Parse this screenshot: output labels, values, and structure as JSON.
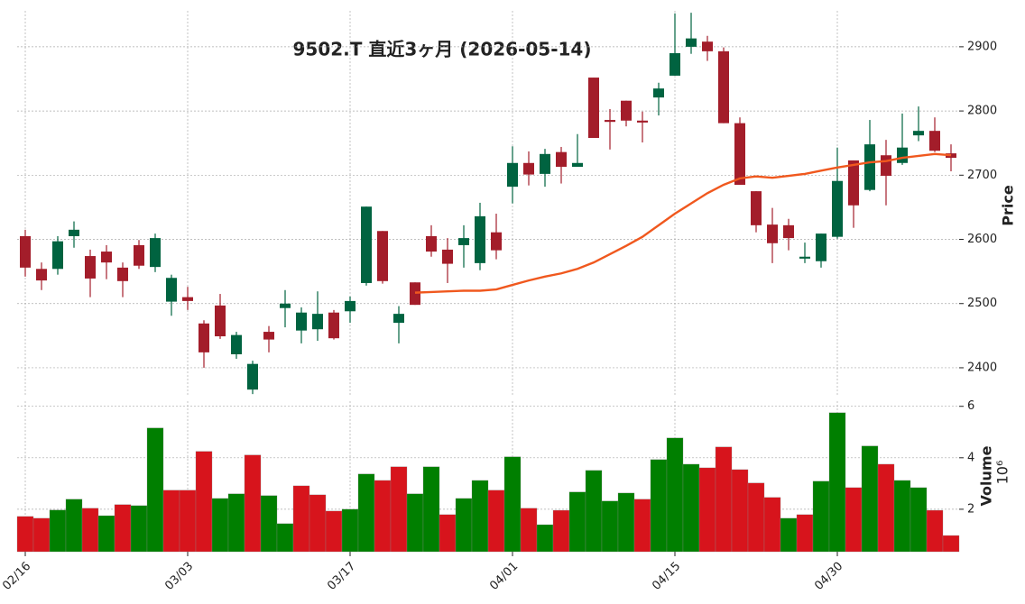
{
  "chart_data": {
    "type": "candlestick",
    "title": "9502.T  直近3ヶ月  (2026-05-14)",
    "categories": [
      "02/16",
      null,
      null,
      null,
      null,
      null,
      null,
      null,
      null,
      null,
      "03/03",
      null,
      null,
      null,
      null,
      null,
      null,
      null,
      null,
      null,
      "03/17",
      null,
      null,
      null,
      null,
      null,
      null,
      null,
      null,
      null,
      "04/01",
      null,
      null,
      null,
      null,
      null,
      null,
      null,
      null,
      null,
      "04/15",
      null,
      null,
      null,
      null,
      null,
      null,
      null,
      null,
      null,
      "04/30",
      null,
      null,
      null,
      null,
      null,
      null,
      null
    ],
    "open": [
      2605,
      2554,
      2554,
      2605,
      2574,
      2581,
      2556,
      2591,
      2557,
      2503,
      2510,
      2469,
      2497,
      2421,
      2366,
      2456,
      2493,
      2458,
      2460,
      2486,
      2488,
      2532,
      2613,
      2470,
      2533,
      2605,
      2584,
      2591,
      2563,
      2611,
      2682,
      2719,
      2702,
      2736,
      2713,
      2852,
      2786,
      2816,
      2785,
      2821,
      2855,
      2900,
      2908,
      2893,
      2781,
      2675,
      2623,
      2622,
      2570,
      2566,
      2604,
      2723,
      2677,
      2731,
      2719,
      2762,
      2769,
      2734
    ],
    "high": [
      2615,
      2564,
      2605,
      2628,
      2584,
      2591,
      2564,
      2599,
      2609,
      2545,
      2526,
      2474,
      2515,
      2456,
      2411,
      2465,
      2521,
      2494,
      2519,
      2490,
      2511,
      2651,
      2613,
      2496,
      2533,
      2622,
      2602,
      2622,
      2657,
      2640,
      2745,
      2737,
      2741,
      2744,
      2764,
      2852,
      2803,
      2816,
      2799,
      2844,
      2952,
      2953,
      2917,
      2899,
      2790,
      2675,
      2649,
      2632,
      2595,
      2609,
      2743,
      2723,
      2786,
      2755,
      2796,
      2807,
      2790,
      2748
    ],
    "low": [
      2542,
      2521,
      2545,
      2587,
      2510,
      2538,
      2510,
      2554,
      2549,
      2481,
      2490,
      2400,
      2445,
      2414,
      2359,
      2424,
      2463,
      2438,
      2442,
      2444,
      2470,
      2528,
      2531,
      2438,
      2498,
      2573,
      2532,
      2556,
      2552,
      2569,
      2656,
      2684,
      2682,
      2687,
      2713,
      2758,
      2740,
      2776,
      2751,
      2793,
      2855,
      2889,
      2878,
      2781,
      2685,
      2611,
      2563,
      2583,
      2563,
      2556,
      2601,
      2618,
      2675,
      2653,
      2716,
      2753,
      2736,
      2706
    ],
    "close": [
      2556,
      2536,
      2597,
      2615,
      2539,
      2564,
      2535,
      2559,
      2602,
      2540,
      2504,
      2424,
      2449,
      2451,
      2406,
      2444,
      2500,
      2486,
      2484,
      2446,
      2504,
      2651,
      2535,
      2484,
      2498,
      2581,
      2562,
      2602,
      2636,
      2583,
      2719,
      2701,
      2733,
      2713,
      2719,
      2758,
      2783,
      2785,
      2782,
      2835,
      2890,
      2913,
      2893,
      2781,
      2685,
      2622,
      2594,
      2602,
      2573,
      2609,
      2691,
      2653,
      2748,
      2699,
      2743,
      2769,
      2738,
      2727
    ],
    "up_color": "#006340",
    "down_color": "#a31d2a",
    "ma": {
      "color": "#f0581e",
      "values": [
        null,
        null,
        null,
        null,
        null,
        null,
        null,
        null,
        null,
        null,
        null,
        null,
        null,
        null,
        null,
        null,
        null,
        null,
        null,
        null,
        null,
        null,
        null,
        null,
        2517,
        2518,
        2519,
        2520,
        2520,
        2522,
        2529,
        2536,
        2542,
        2547,
        2554,
        2564,
        2577,
        2590,
        2604,
        2622,
        2640,
        2656,
        2672,
        2685,
        2695,
        2698,
        2696,
        2699,
        2702,
        2707,
        2712,
        2716,
        2720,
        2722,
        2727,
        2730,
        2733,
        2731
      ]
    },
    "ylabel": "Price",
    "ylim": [
      2355,
      2956
    ],
    "yticks": [
      2400,
      2500,
      2600,
      2700,
      2800,
      2900
    ],
    "grid": true,
    "volume": {
      "ylabel": "Volume",
      "offset_label": "10⁶",
      "ylim": [
        0.35,
        6.2
      ],
      "yticks": [
        2,
        4,
        6
      ],
      "values": [
        1.72,
        1.65,
        1.97,
        2.39,
        2.04,
        1.75,
        2.18,
        2.14,
        5.16,
        2.74,
        2.74,
        4.25,
        2.42,
        2.6,
        4.11,
        2.53,
        1.44,
        2.91,
        2.56,
        1.93,
        2.0,
        3.37,
        3.12,
        3.65,
        2.6,
        3.65,
        1.79,
        2.42,
        3.12,
        2.74,
        4.04,
        2.04,
        1.4,
        1.96,
        2.67,
        3.51,
        2.32,
        2.63,
        2.39,
        3.93,
        4.77,
        3.75,
        3.61,
        4.42,
        3.54,
        3.02,
        2.46,
        1.65,
        1.79,
        3.09,
        5.75,
        2.84,
        4.46,
        3.75,
        3.12,
        2.84,
        1.96,
        0.98
      ],
      "colors": [
        "#d7141c",
        "#d7141c",
        "#007f00",
        "#007f00",
        "#d7141c",
        "#007f00",
        "#d7141c",
        "#007f00",
        "#007f00",
        "#d7141c",
        "#d7141c",
        "#d7141c",
        "#007f00",
        "#007f00",
        "#d7141c",
        "#007f00",
        "#007f00",
        "#d7141c",
        "#d7141c",
        "#d7141c",
        "#007f00",
        "#007f00",
        "#d7141c",
        "#d7141c",
        "#007f00",
        "#007f00",
        "#d7141c",
        "#007f00",
        "#007f00",
        "#d7141c",
        "#007f00",
        "#d7141c",
        "#007f00",
        "#d7141c",
        "#007f00",
        "#007f00",
        "#007f00",
        "#007f00",
        "#d7141c",
        "#007f00",
        "#007f00",
        "#007f00",
        "#d7141c",
        "#d7141c",
        "#d7141c",
        "#d7141c",
        "#d7141c",
        "#007f00",
        "#d7141c",
        "#007f00",
        "#007f00",
        "#d7141c",
        "#007f00",
        "#d7141c",
        "#007f00",
        "#007f00",
        "#d7141c",
        "#d7141c"
      ]
    }
  }
}
